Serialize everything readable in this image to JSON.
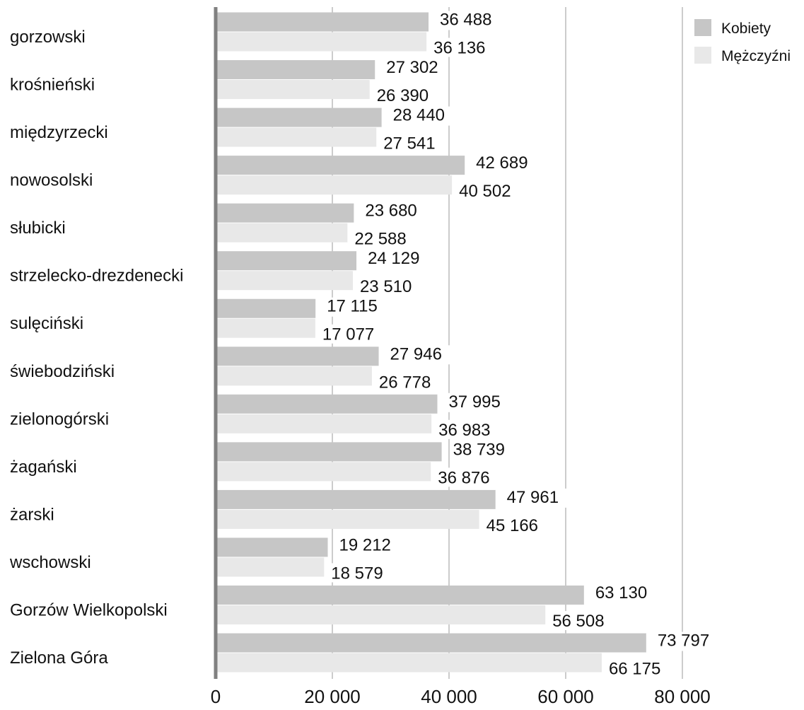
{
  "chart_data": {
    "type": "bar",
    "orientation": "horizontal",
    "categories": [
      "gorzowski",
      "krośnieński",
      "międzyrzecki",
      "nowosolski",
      "słubicki",
      "strzelecko-drezdenecki",
      "sulęciński",
      "świebodziński",
      "zielonogórski",
      "żagański",
      "żarski",
      "wschowski",
      "Gorzów Wielkopolski",
      "Zielona Góra"
    ],
    "series": [
      {
        "name": "Kobiety",
        "color": "#c6c6c6",
        "values": [
          36488,
          27302,
          28440,
          42689,
          23680,
          24129,
          17115,
          27946,
          37995,
          38739,
          47961,
          19212,
          63130,
          73797
        ],
        "labels": [
          "36 488",
          "27 302",
          "28 440",
          "42 689",
          "23 680",
          "24 129",
          "17 115",
          "27 946",
          "37 995",
          "38 739",
          "47 961",
          "19 212",
          "63 130",
          "73 797"
        ]
      },
      {
        "name": "Mężczyźni",
        "color": "#e8e8e8",
        "values": [
          36136,
          26390,
          27541,
          40502,
          22588,
          23510,
          17077,
          26778,
          36983,
          36876,
          45166,
          18579,
          56508,
          66175
        ],
        "labels": [
          "36 136",
          "26 390",
          "27 541",
          "40 502",
          "22 588",
          "23 510",
          "17 077",
          "26 778",
          "36 983",
          "36 876",
          "45 166",
          "18 579",
          "56 508",
          "66 175"
        ]
      }
    ],
    "xlim": [
      0,
      80000
    ],
    "xticks": [
      0,
      20000,
      40000,
      60000,
      80000
    ],
    "xtick_labels": [
      "0",
      "20 000",
      "40 000",
      "60 000",
      "80 000"
    ],
    "grid": "vertical",
    "legend_position": "top-right",
    "title": "",
    "xlabel": "",
    "ylabel": ""
  }
}
